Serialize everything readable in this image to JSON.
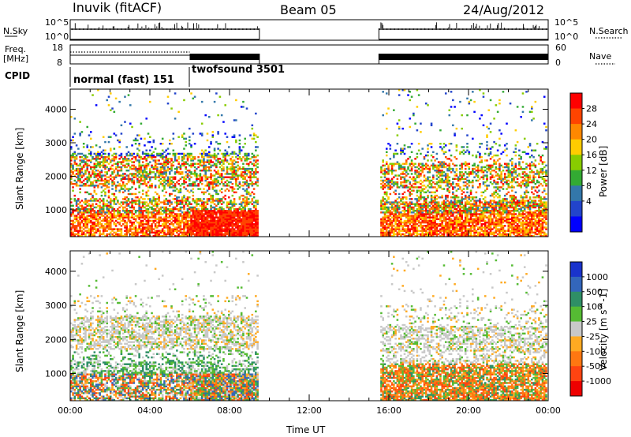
{
  "header": {
    "station": "Inuvik (fitACF)",
    "beam": "Beam 05",
    "date": "24/Aug/2012"
  },
  "status_panels": {
    "nsky_label": "N.Sky",
    "nsky_ticks": [
      "10^5",
      "10^0"
    ],
    "nsearch_label": "N.Search",
    "nsearch_ticks": [
      "10^5",
      "10^0"
    ],
    "freq_label_line1": "Freq.",
    "freq_label_line2": "[MHz]",
    "freq_ticks": [
      "18",
      "8"
    ],
    "nave_label": "Nave",
    "nave_ticks": [
      "60",
      "0"
    ],
    "cpid_label": "CPID",
    "modes": [
      {
        "name": "normal (fast) 151",
        "start_hour": 0,
        "end_hour": 6
      },
      {
        "name": "twofsound 3501",
        "start_hour": 6,
        "end_hour": 9.5
      }
    ]
  },
  "power_colorbar": {
    "label": "Power [dB]",
    "ticks": [
      "28",
      "24",
      "20",
      "16",
      "12",
      "8",
      "4"
    ],
    "colors": [
      "#ff0000",
      "#ff4400",
      "#ff8800",
      "#ffcc00",
      "#88cc00",
      "#33aa33",
      "#3377aa",
      "#2244cc",
      "#0000ff"
    ]
  },
  "velocity_colorbar": {
    "label": "Velocity [m s^-1]",
    "ticks": [
      "1000",
      "500",
      "100",
      "25",
      "-25",
      "-100",
      "-500",
      "-1000"
    ],
    "colors": [
      "#1a33cc",
      "#3366bb",
      "#2f8f66",
      "#55bb33",
      "#c8c8c8",
      "#ffaa22",
      "#ff7711",
      "#ff4411",
      "#ee0000"
    ]
  },
  "chart_data": [
    {
      "type": "heatmap",
      "title": "",
      "ylabel": "Slant Range [km]",
      "xlabel": "",
      "xlim_hours": [
        0,
        24
      ],
      "ylim": [
        200,
        4600
      ],
      "y_ticks": [
        "4000",
        "3000",
        "2000",
        "1000"
      ],
      "data_intervals_hours": [
        [
          0,
          9.5
        ],
        [
          15.5,
          24
        ]
      ],
      "colorbar": "Power [dB]"
    },
    {
      "type": "heatmap",
      "title": "",
      "ylabel": "Slant Range [km]",
      "xlabel": "Time UT",
      "xlim_hours": [
        0,
        24
      ],
      "ylim": [
        200,
        4600
      ],
      "y_ticks": [
        "4000",
        "3000",
        "2000",
        "1000"
      ],
      "x_ticks": [
        "00:00",
        "04:00",
        "08:00",
        "12:00",
        "16:00",
        "20:00",
        "00:00"
      ],
      "data_intervals_hours": [
        [
          0,
          9.5
        ],
        [
          15.5,
          24
        ]
      ],
      "colorbar": "Velocity [m s^-1]"
    }
  ]
}
